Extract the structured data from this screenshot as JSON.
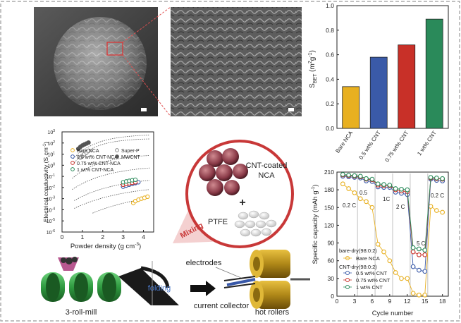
{
  "colors": {
    "bare": "#e8b020",
    "cnt05": "#3a5aa8",
    "cnt075": "#c83028",
    "cnt1": "#2a8a5a",
    "superp": "#888888",
    "mwcnt": "#555555",
    "mixing_red": "#c83838",
    "roller_green": "#3aa050",
    "roller_gold": "#b8901a"
  },
  "sem": {
    "left_scale": "",
    "right_scale": ""
  },
  "chart_data": [
    {
      "type": "bar",
      "categories": [
        "Bare NCA",
        "0.5 wt% CNT",
        "0.75 wt% CNT",
        "1 wt% CNT"
      ],
      "values": [
        0.34,
        0.58,
        0.68,
        0.89
      ],
      "ylabel": "S_BET (m²g⁻¹)",
      "ylabel_main": "S",
      "ylabel_sub": "BET",
      "ylabel_unit": " (m",
      "ylabel_sup1": "2",
      "ylabel_mid": "g",
      "ylabel_sup2": "-1",
      "ylabel_close": ")",
      "ylim": [
        0.0,
        1.0
      ],
      "yticks": [
        "0.0",
        "0.2",
        "0.4",
        "0.6",
        "0.8",
        "1.0"
      ]
    },
    {
      "type": "scatter",
      "xlabel": "Powder density (g cm⁻³)",
      "xlabel_main": "Powder density (g cm",
      "xlabel_sup": "-3",
      "xlabel_close": ")",
      "ylabel": "Electrical conductivity (S cm⁻¹)",
      "ylabel_main": "Electrical conductivity (S cm",
      "ylabel_sup": "-1",
      "ylabel_close": ")",
      "xlim": [
        0,
        4.5
      ],
      "ylim_log": [
        -6,
        3
      ],
      "xticks": [
        "0",
        "1",
        "2",
        "3",
        "4"
      ],
      "yticks": [
        "10",
        "10",
        "10",
        "10",
        "10",
        "10",
        "10",
        "10",
        "10",
        "10"
      ],
      "ytick_exps": [
        "-6",
        "-5",
        "-4",
        "-3",
        "-2",
        "-1",
        "0",
        "1",
        "2",
        "3"
      ],
      "legend": {
        "left": [
          "Bare NCA",
          "0.5 wt% CNT-NCA",
          "0.75 wt% CNT-NCA",
          "1 wt% CNT-NCA"
        ],
        "right": [
          "Super-P",
          "MWCNT"
        ]
      },
      "series": [
        {
          "name": "Super-P",
          "x": [
            0.9,
            1.0,
            1.1,
            1.2,
            1.3
          ],
          "y": [
            5,
            7,
            10,
            14,
            20
          ]
        },
        {
          "name": "MWCNT",
          "x": [
            0.8,
            0.9,
            1.0,
            1.1,
            1.2,
            1.3
          ],
          "y": [
            30,
            45,
            60,
            75,
            90,
            110
          ]
        },
        {
          "name": "Bare NCA",
          "x": [
            3.5,
            3.6,
            3.75,
            3.9,
            4.05,
            4.2
          ],
          "y": [
            0.0004,
            0.0006,
            0.0008,
            0.001,
            0.0012,
            0.0015
          ]
        },
        {
          "name": "0.5 wt% CNT-NCA",
          "x": [
            3.0,
            3.15,
            3.3,
            3.45,
            3.6,
            3.75
          ],
          "y": [
            0.012,
            0.015,
            0.018,
            0.021,
            0.025,
            0.03
          ]
        },
        {
          "name": "0.75 wt% CNT-NCA",
          "x": [
            3.0,
            3.15,
            3.3,
            3.45,
            3.6
          ],
          "y": [
            0.018,
            0.021,
            0.024,
            0.027,
            0.03
          ]
        },
        {
          "name": "1 wt% CNT-NCA",
          "x": [
            3.0,
            3.15,
            3.3,
            3.45,
            3.6
          ],
          "y": [
            0.03,
            0.035,
            0.04,
            0.045,
            0.05
          ]
        }
      ]
    },
    {
      "type": "line",
      "xlabel": "Cycle number",
      "ylabel": "Specific capacity (mAh g⁻¹)",
      "ylabel_main": "Specific capacity (mAh g",
      "ylabel_sup": "-1",
      "ylabel_close": ")",
      "xlim": [
        0,
        19
      ],
      "ylim": [
        0,
        210
      ],
      "xticks": [
        "0",
        "3",
        "6",
        "9",
        "12",
        "15",
        "18"
      ],
      "yticks": [
        "0",
        "30",
        "60",
        "90",
        "120",
        "150",
        "180",
        "210"
      ],
      "rate_labels": [
        "0.2 C",
        "0.5",
        "1C",
        "2 C",
        "5 C",
        "0.2 C"
      ],
      "legend_groups": [
        "bare-dry(98:0:2)",
        "CNT-dry(98:0:2)"
      ],
      "series": [
        {
          "name": "Bare NCA",
          "x": [
            1,
            2,
            3,
            4,
            5,
            6,
            7,
            8,
            9,
            10,
            11,
            12,
            13,
            14,
            15,
            16,
            17,
            18
          ],
          "y": [
            190,
            182,
            175,
            165,
            160,
            150,
            88,
            75,
            60,
            40,
            30,
            30,
            5,
            2,
            2,
            152,
            145,
            142
          ]
        },
        {
          "name": "0.5 wt% CNT",
          "x": [
            1,
            2,
            3,
            4,
            5,
            6,
            7,
            8,
            9,
            10,
            11,
            12,
            13,
            14,
            15,
            16,
            17,
            18
          ],
          "y": [
            203,
            202,
            201,
            200,
            195,
            194,
            185,
            184,
            184,
            176,
            174,
            172,
            50,
            44,
            42,
            198,
            196,
            195
          ]
        },
        {
          "name": "0.75 wt% CNT",
          "x": [
            1,
            2,
            3,
            4,
            5,
            6,
            7,
            8,
            9,
            10,
            11,
            12,
            13,
            14,
            15,
            16,
            17,
            18
          ],
          "y": [
            205,
            204,
            203,
            202,
            198,
            197,
            188,
            187,
            187,
            180,
            178,
            177,
            75,
            70,
            70,
            200,
            199,
            198
          ]
        },
        {
          "name": "1 wt% CNT",
          "x": [
            1,
            2,
            3,
            4,
            5,
            6,
            7,
            8,
            9,
            10,
            11,
            12,
            13,
            14,
            15,
            16,
            17,
            18
          ],
          "y": [
            206,
            205,
            204,
            203,
            199,
            198,
            190,
            189,
            188,
            182,
            181,
            180,
            82,
            80,
            78,
            201,
            200,
            199
          ]
        }
      ]
    }
  ],
  "schematic": {
    "cnt_coated_label1": "CNT-coated",
    "cnt_coated_label2": "NCA",
    "plus": "+",
    "ptfe": "PTFE",
    "mixing": "Mixing",
    "folding": "folding",
    "electrodes": "electrodes",
    "three_roll_mill": "3-roll-mill",
    "current_collector": "current collector",
    "hot_rollers": "hot rollers"
  }
}
